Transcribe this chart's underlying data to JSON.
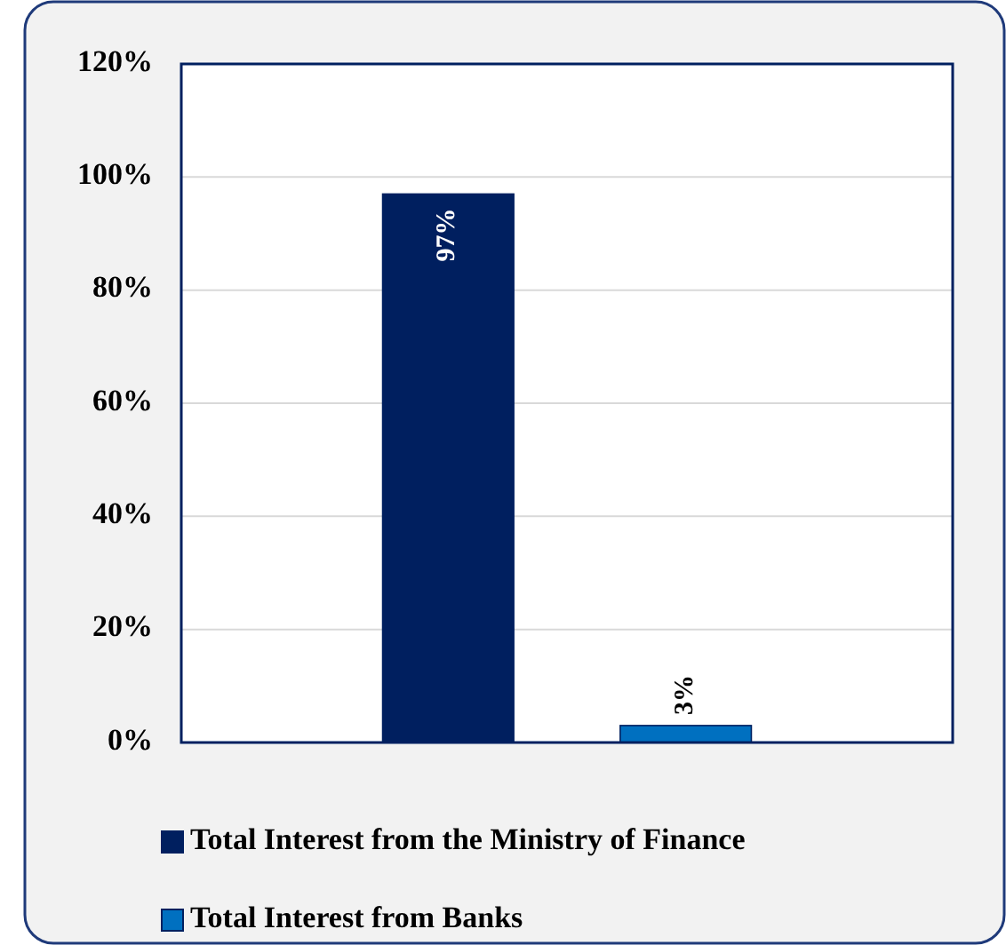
{
  "chart_data": {
    "type": "bar",
    "categories": [
      null
    ],
    "series": [
      {
        "name": "Total Interest from the Ministry of Finance",
        "color": "#001f5f",
        "values": [
          97
        ],
        "value_labels": [
          "97%"
        ]
      },
      {
        "name": "Total Interest from Banks",
        "color": "#0070c0",
        "values": [
          3
        ],
        "value_labels": [
          "3%"
        ]
      }
    ],
    "ylim": [
      0,
      120
    ],
    "yticks": [
      {
        "value": 0,
        "label": "0%"
      },
      {
        "value": 20,
        "label": "20%"
      },
      {
        "value": 40,
        "label": "40%"
      },
      {
        "value": 60,
        "label": "60%"
      },
      {
        "value": 80,
        "label": "80%"
      },
      {
        "value": 100,
        "label": "100%"
      },
      {
        "value": 120,
        "label": "120%"
      }
    ],
    "grid": "y",
    "legend": "bottom"
  }
}
